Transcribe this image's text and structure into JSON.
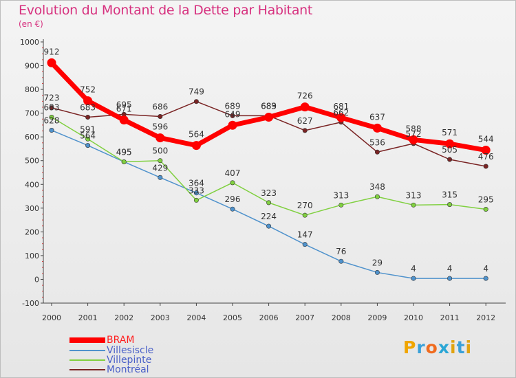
{
  "header": {
    "title": "Evolution du Montant de la Dette par Habitant",
    "subtitle": "(en €)"
  },
  "logo": {
    "letters": [
      "P",
      "r",
      "o",
      "x",
      "i",
      "t",
      "i"
    ],
    "colors": [
      "#f0a500",
      "#3aa0d8",
      "#f06b1e",
      "#2aa6d5",
      "#e0a310",
      "#3aa0d8",
      "#e0a310"
    ]
  },
  "chart_data": {
    "type": "line",
    "title": "Evolution du Montant de la Dette par Habitant",
    "subtitle": "(en €)",
    "x": [
      "2000",
      "2001",
      "2002",
      "2003",
      "2004",
      "2005",
      "2006",
      "2007",
      "2008",
      "2009",
      "2010",
      "2011",
      "2012"
    ],
    "ylim": [
      -100,
      1000
    ],
    "yticks": [
      "-100",
      "0",
      "100",
      "200",
      "300",
      "400",
      "500",
      "600",
      "700",
      "800",
      "900",
      "1000"
    ],
    "grid": false,
    "legend_position": "bottom-left",
    "series": [
      {
        "name": "BRAM",
        "color": "#ff0000",
        "values": [
          912,
          752,
          671,
          596,
          564,
          649,
          683,
          726,
          681,
          637,
          588,
          571,
          544
        ],
        "labels": [
          "912",
          "752",
          "671",
          "596",
          "564",
          "649",
          "683",
          "726",
          "681",
          "637",
          "588",
          "571",
          "544"
        ]
      },
      {
        "name": "Villesiscle",
        "color": "#4f92cc",
        "values": [
          628,
          564,
          495,
          429,
          364,
          296,
          224,
          147,
          76,
          29,
          4,
          4,
          4
        ],
        "labels": [
          "628",
          "564",
          "495",
          "429",
          "364",
          "296",
          "224",
          "147",
          "76",
          "29",
          "4",
          "4",
          "4"
        ]
      },
      {
        "name": "Villepinte",
        "color": "#80d040",
        "values": [
          683,
          591,
          495,
          500,
          333,
          407,
          323,
          270,
          313,
          348,
          313,
          315,
          295
        ],
        "labels": [
          "683",
          "591",
          "495",
          "500",
          "333",
          "407",
          "323",
          "270",
          "313",
          "348",
          "313",
          "315",
          "295"
        ]
      },
      {
        "name": "Montréal",
        "color": "#7a2424",
        "values": [
          723,
          683,
          695,
          686,
          749,
          689,
          689,
          627,
          662,
          536,
          572,
          505,
          476
        ],
        "labels": [
          "723",
          "683",
          "695",
          "686",
          "749",
          "689",
          "689",
          "627",
          "662",
          "536",
          "572",
          "505",
          "476"
        ]
      }
    ]
  }
}
